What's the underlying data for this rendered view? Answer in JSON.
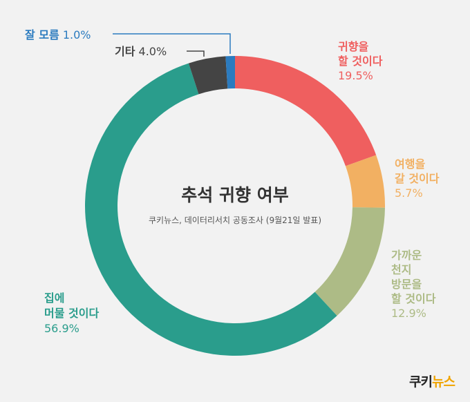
{
  "chart_data": {
    "type": "pie",
    "title": "추석 귀향 여부",
    "subtitle": "쿠키뉴스, 데이터리서치 공동조사 (9월21일 발표)",
    "slices": [
      {
        "label": [
          "귀향을",
          "할 것이다"
        ],
        "value": 19.5,
        "value_label": "19.5%",
        "color": "#ef5f5f"
      },
      {
        "label": [
          "여행을",
          "갈 것이다"
        ],
        "value": 5.7,
        "value_label": "5.7%",
        "color": "#f2b062"
      },
      {
        "label": [
          "가까운",
          "천지",
          "방문을",
          "할 것이다"
        ],
        "value": 12.9,
        "value_label": "12.9%",
        "color": "#adbb86"
      },
      {
        "label": [
          "집에",
          "머물 것이다"
        ],
        "value": 56.9,
        "value_label": "56.9%",
        "color": "#2a9d8c"
      },
      {
        "label": [
          "기타"
        ],
        "value": 4.0,
        "value_label": "4.0%",
        "color": "#444444"
      },
      {
        "label": [
          "잘 모름"
        ],
        "value": 1.0,
        "value_label": "1.0%",
        "color": "#2b7bbf"
      }
    ]
  },
  "brand": {
    "part1": "쿠키",
    "part2": "뉴스"
  }
}
